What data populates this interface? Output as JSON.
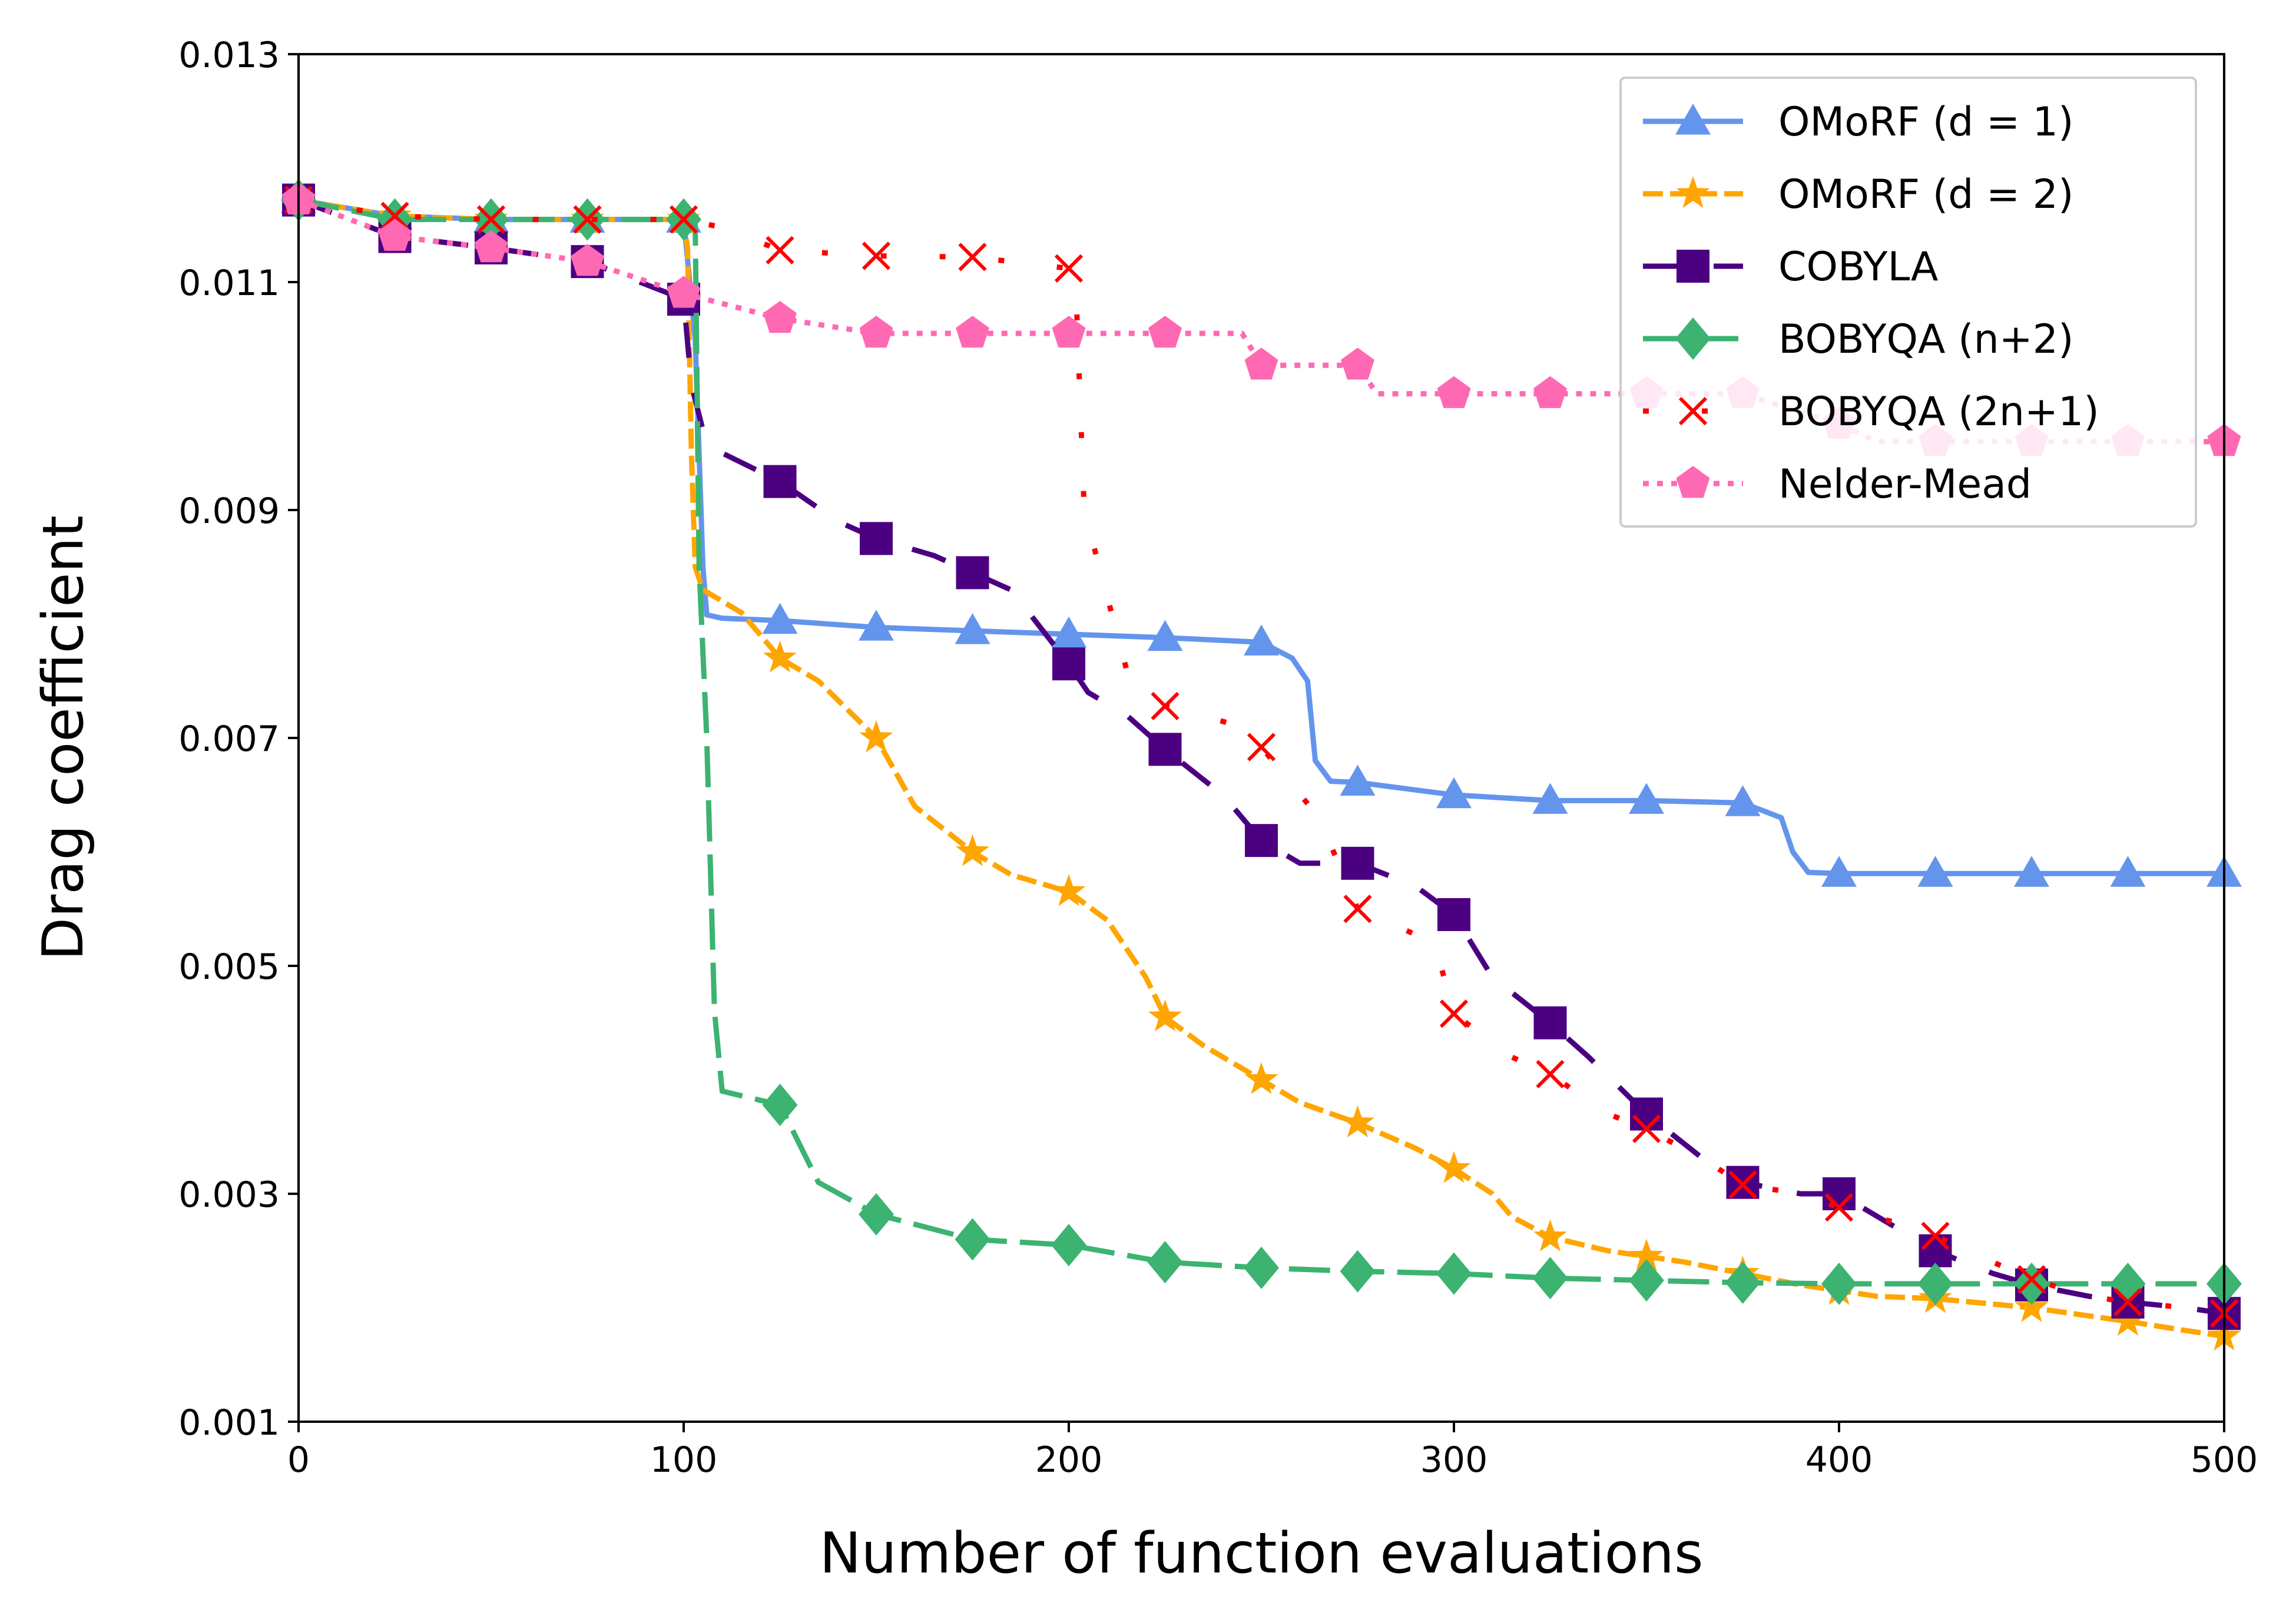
{
  "chart_data": {
    "type": "line",
    "title": "",
    "xlabel": "Number of function evaluations",
    "ylabel": "Drag coefficient",
    "xlim": [
      0,
      500
    ],
    "ylim": [
      0.001,
      0.013
    ],
    "xticks": [
      0,
      100,
      200,
      300,
      400,
      500
    ],
    "xtick_labels": [
      "0",
      "100",
      "200",
      "300",
      "400",
      "500"
    ],
    "yticks": [
      0.001,
      0.003,
      0.005,
      0.007,
      0.009,
      0.011,
      0.013
    ],
    "ytick_labels": [
      "0.001",
      "0.003",
      "0.005",
      "0.007",
      "0.009",
      "0.011",
      "0.013"
    ],
    "grid": false,
    "legend_position": "top-right",
    "series": [
      {
        "name": "OMoRF (d = 1)",
        "color": "#6495ED",
        "linestyle": "solid",
        "marker": "triangle",
        "x": [
          0,
          25,
          50,
          75,
          100,
          103,
          105,
          106,
          110,
          125,
          150,
          175,
          200,
          225,
          250,
          258,
          262,
          264,
          268,
          275,
          300,
          325,
          350,
          375,
          385,
          388,
          392,
          400,
          425,
          450,
          475,
          500
        ],
        "y": [
          0.01172,
          0.01158,
          0.01155,
          0.01155,
          0.01155,
          0.0105,
          0.0085,
          0.00808,
          0.00805,
          0.00803,
          0.00797,
          0.00794,
          0.00791,
          0.00788,
          0.00784,
          0.0077,
          0.0075,
          0.0068,
          0.00662,
          0.00661,
          0.0065,
          0.00645,
          0.00645,
          0.00643,
          0.0063,
          0.006,
          0.00582,
          0.00581,
          0.00581,
          0.00581,
          0.00581,
          0.00581
        ]
      },
      {
        "name": "OMoRF (d = 2)",
        "color": "#FFA500",
        "linestyle": "dashed",
        "marker": "star",
        "x": [
          0,
          25,
          50,
          75,
          100,
          101,
          102,
          103,
          105,
          110,
          115,
          125,
          135,
          150,
          160,
          175,
          185,
          200,
          210,
          220,
          225,
          235,
          250,
          260,
          275,
          290,
          300,
          310,
          315,
          325,
          340,
          350,
          360,
          375,
          390,
          400,
          410,
          425,
          450,
          475,
          490,
          500
        ],
        "y": [
          0.01172,
          0.01158,
          0.01155,
          0.01155,
          0.01155,
          0.0113,
          0.0095,
          0.0085,
          0.0083,
          0.0082,
          0.0081,
          0.0077,
          0.0075,
          0.007,
          0.0064,
          0.006,
          0.0058,
          0.00565,
          0.0054,
          0.0049,
          0.00455,
          0.0043,
          0.004,
          0.0038,
          0.00362,
          0.0034,
          0.00322,
          0.003,
          0.0028,
          0.00262,
          0.0025,
          0.00245,
          0.0024,
          0.0023,
          0.0022,
          0.00215,
          0.0021,
          0.00208,
          0.002,
          0.00188,
          0.0018,
          0.00175
        ]
      },
      {
        "name": "COBYLA",
        "color": "#4B0082",
        "linestyle": "sparse-dashed",
        "marker": "square",
        "x": [
          0,
          25,
          50,
          75,
          100,
          102,
          105,
          110,
          125,
          140,
          150,
          165,
          175,
          185,
          200,
          205,
          215,
          225,
          240,
          250,
          260,
          275,
          290,
          300,
          310,
          325,
          335,
          350,
          365,
          375,
          390,
          400,
          415,
          425,
          440,
          450,
          465,
          475,
          490,
          500
        ],
        "y": [
          0.01172,
          0.0114,
          0.0113,
          0.01118,
          0.01085,
          0.0101,
          0.0097,
          0.0095,
          0.00925,
          0.0089,
          0.00875,
          0.0086,
          0.00845,
          0.0083,
          0.00765,
          0.0074,
          0.0072,
          0.0069,
          0.0065,
          0.0061,
          0.0059,
          0.0059,
          0.0057,
          0.00545,
          0.0049,
          0.0045,
          0.0042,
          0.0037,
          0.0033,
          0.0031,
          0.003,
          0.003,
          0.0027,
          0.0025,
          0.0023,
          0.0022,
          0.0021,
          0.00205,
          0.002,
          0.00195
        ]
      },
      {
        "name": "BOBYQA (n+2)",
        "color": "#3CB371",
        "linestyle": "long-dashed",
        "marker": "diamond",
        "x": [
          0,
          25,
          50,
          75,
          100,
          103,
          104,
          106,
          108,
          110,
          125,
          135,
          150,
          175,
          200,
          225,
          250,
          275,
          300,
          325,
          350,
          375,
          400,
          425,
          450,
          475,
          500
        ],
        "y": [
          0.01172,
          0.01155,
          0.01155,
          0.01155,
          0.01155,
          0.0115,
          0.0085,
          0.007,
          0.0046,
          0.0039,
          0.00378,
          0.0031,
          0.00282,
          0.0026,
          0.00255,
          0.0024,
          0.00235,
          0.00232,
          0.0023,
          0.00226,
          0.00224,
          0.00222,
          0.00221,
          0.00221,
          0.00221,
          0.00221,
          0.00221
        ]
      },
      {
        "name": "BOBYQA (2n+1)",
        "color": "#FF0000",
        "linestyle": "dotted-sparse",
        "marker": "x",
        "x": [
          0,
          25,
          50,
          75,
          100,
          110,
          125,
          150,
          175,
          200,
          202,
          204,
          215,
          225,
          245,
          250,
          265,
          275,
          295,
          300,
          315,
          325,
          340,
          350,
          365,
          375,
          390,
          400,
          420,
          425,
          440,
          450,
          465,
          475,
          490,
          500
        ],
        "y": [
          0.01172,
          0.01158,
          0.01155,
          0.01155,
          0.01155,
          0.01148,
          0.01128,
          0.01123,
          0.01122,
          0.01112,
          0.0108,
          0.009,
          0.0076,
          0.00728,
          0.0071,
          0.00692,
          0.0063,
          0.0055,
          0.0052,
          0.00458,
          0.0042,
          0.00405,
          0.0037,
          0.00357,
          0.0033,
          0.00308,
          0.003,
          0.00288,
          0.0027,
          0.00263,
          0.0024,
          0.00225,
          0.0021,
          0.00205,
          0.002,
          0.00195
        ]
      },
      {
        "name": "Nelder-Mead",
        "color": "#FF69B4",
        "linestyle": "dotted",
        "marker": "pentagon",
        "x": [
          0,
          25,
          50,
          75,
          100,
          125,
          150,
          175,
          200,
          225,
          245,
          250,
          275,
          280,
          300,
          325,
          350,
          375,
          400,
          410,
          425,
          450,
          475,
          500
        ],
        "y": [
          0.01172,
          0.0114,
          0.0113,
          0.01118,
          0.0109,
          0.01068,
          0.01055,
          0.01055,
          0.01055,
          0.01055,
          0.01055,
          0.01027,
          0.01027,
          0.01002,
          0.01002,
          0.01002,
          0.01002,
          0.01002,
          0.00975,
          0.0096,
          0.0096,
          0.0096,
          0.0096,
          0.0096
        ]
      }
    ]
  }
}
